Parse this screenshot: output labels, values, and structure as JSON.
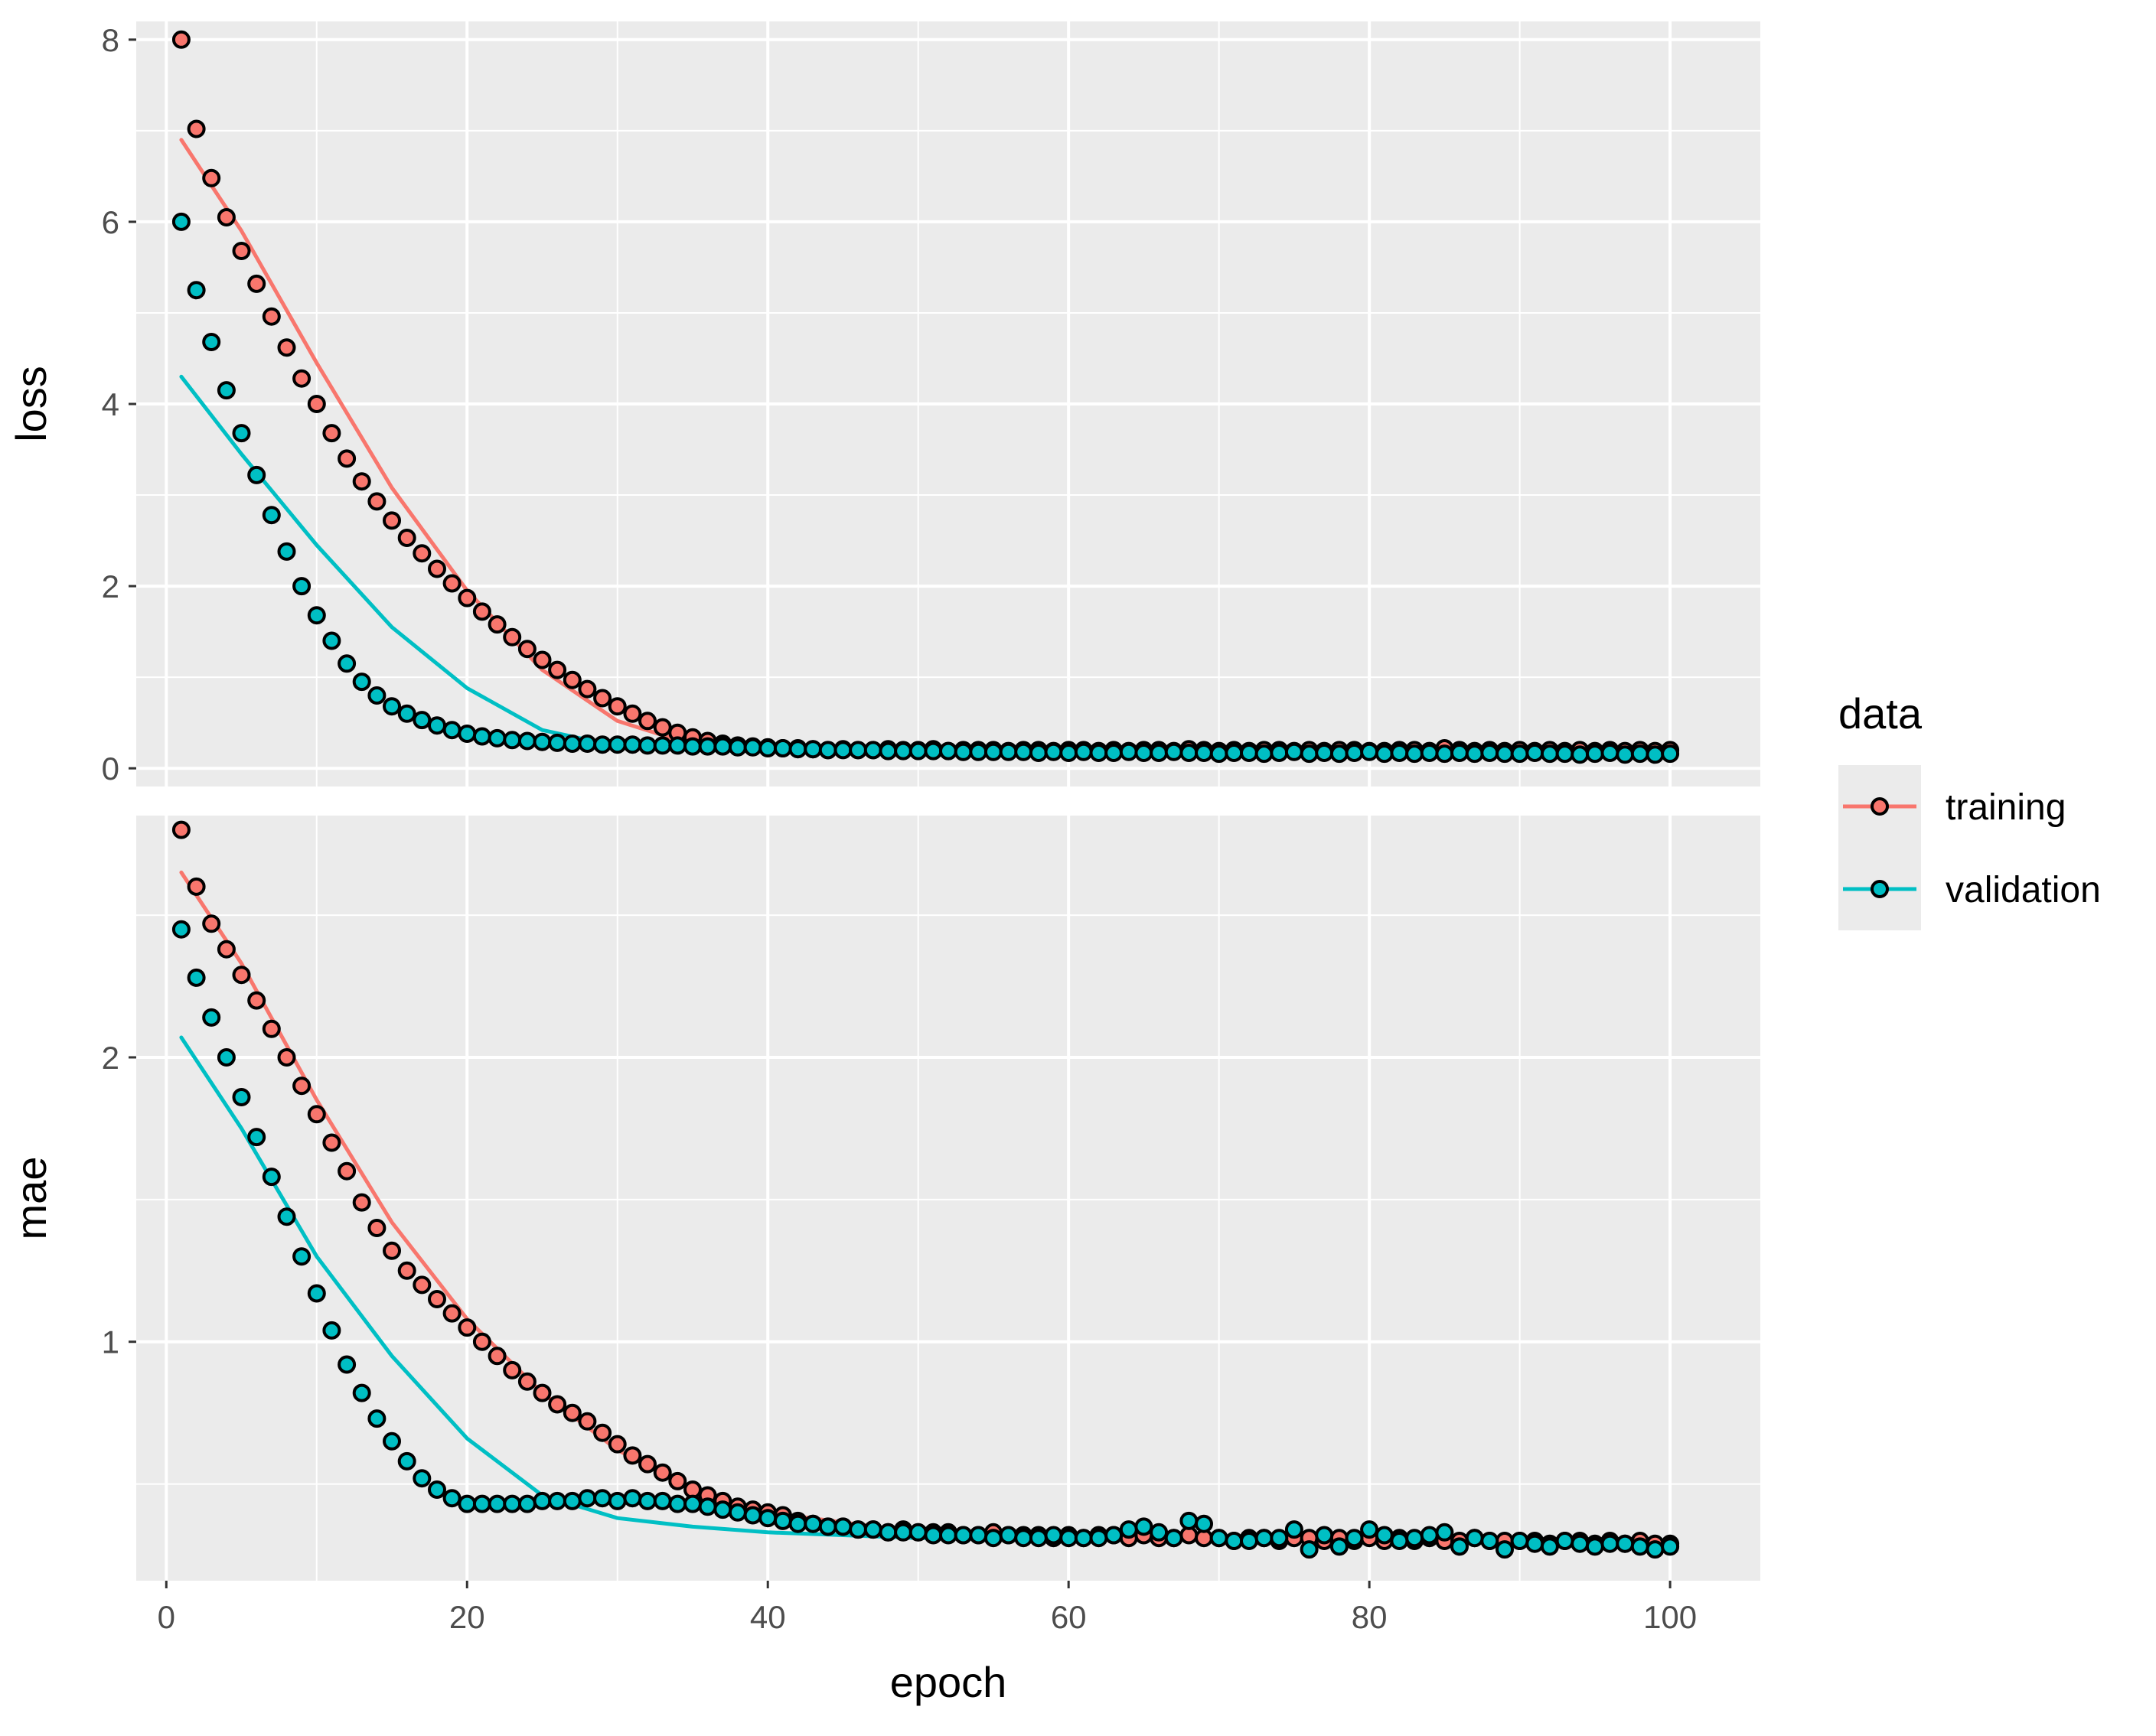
{
  "chart_data": {
    "type": "line",
    "description_style": "ggplot2 faceted plot of training history: points are per-epoch values, lines are smoothed fits",
    "x": {
      "label": "epoch",
      "range": [
        -2,
        106
      ],
      "ticks": [
        0,
        20,
        40,
        60,
        80,
        100
      ],
      "tick_labels": [
        "0",
        "20",
        "40",
        "60",
        "80",
        "100"
      ]
    },
    "legend": {
      "title": "data",
      "position": "right",
      "entries": [
        {
          "key": "training",
          "label": "training",
          "color": "#F8766D"
        },
        {
          "key": "validation",
          "label": "validation",
          "color": "#00BFC4"
        }
      ]
    },
    "point_outline_color": "#000000",
    "panel_background": "#EBEBEB",
    "gridline_color": "#FFFFFF",
    "panels": [
      {
        "key": "loss",
        "label": "loss",
        "ylim": [
          -0.2,
          8.2
        ],
        "yticks": [
          0,
          2,
          4,
          6,
          8
        ],
        "ytick_labels": [
          "0",
          "2",
          "4",
          "6",
          "8"
        ],
        "series": [
          {
            "name": "training",
            "values": [
              8.0,
              7.02,
              6.48,
              6.05,
              5.68,
              5.32,
              4.96,
              4.62,
              4.28,
              4.0,
              3.68,
              3.4,
              3.15,
              2.93,
              2.72,
              2.53,
              2.36,
              2.19,
              2.03,
              1.87,
              1.72,
              1.58,
              1.44,
              1.31,
              1.19,
              1.08,
              0.97,
              0.87,
              0.77,
              0.68,
              0.6,
              0.52,
              0.45,
              0.39,
              0.34,
              0.3,
              0.27,
              0.25,
              0.24,
              0.23,
              0.22,
              0.22,
              0.21,
              0.2,
              0.21,
              0.2,
              0.2,
              0.21,
              0.2,
              0.2,
              0.21,
              0.19,
              0.2,
              0.2,
              0.2,
              0.19,
              0.2,
              0.2,
              0.19,
              0.2,
              0.2,
              0.19,
              0.2,
              0.19,
              0.2,
              0.2,
              0.19,
              0.21,
              0.2,
              0.19,
              0.2,
              0.19,
              0.2,
              0.2,
              0.19,
              0.2,
              0.19,
              0.2,
              0.2,
              0.19,
              0.19,
              0.2,
              0.2,
              0.19,
              0.22,
              0.2,
              0.19,
              0.2,
              0.19,
              0.2,
              0.19,
              0.2,
              0.19,
              0.2,
              0.19,
              0.2,
              0.19,
              0.2,
              0.19,
              0.2
            ]
          },
          {
            "name": "validation",
            "values": [
              6.0,
              5.25,
              4.68,
              4.15,
              3.68,
              3.22,
              2.78,
              2.38,
              2.0,
              1.68,
              1.4,
              1.15,
              0.95,
              0.8,
              0.68,
              0.6,
              0.53,
              0.47,
              0.42,
              0.38,
              0.35,
              0.33,
              0.31,
              0.3,
              0.29,
              0.28,
              0.27,
              0.27,
              0.26,
              0.26,
              0.26,
              0.25,
              0.25,
              0.25,
              0.24,
              0.24,
              0.24,
              0.23,
              0.23,
              0.22,
              0.22,
              0.21,
              0.21,
              0.2,
              0.2,
              0.2,
              0.2,
              0.19,
              0.19,
              0.19,
              0.19,
              0.19,
              0.18,
              0.18,
              0.18,
              0.18,
              0.18,
              0.17,
              0.18,
              0.17,
              0.18,
              0.17,
              0.17,
              0.18,
              0.17,
              0.17,
              0.18,
              0.17,
              0.17,
              0.16,
              0.17,
              0.17,
              0.16,
              0.17,
              0.18,
              0.16,
              0.17,
              0.16,
              0.17,
              0.18,
              0.16,
              0.17,
              0.16,
              0.17,
              0.16,
              0.17,
              0.16,
              0.17,
              0.16,
              0.16,
              0.17,
              0.16,
              0.16,
              0.15,
              0.16,
              0.17,
              0.15,
              0.16,
              0.15,
              0.16
            ]
          }
        ],
        "smooth": [
          {
            "name": "training",
            "x": [
              1,
              5,
              10,
              15,
              20,
              25,
              30,
              35,
              40,
              50,
              60,
              70,
              80,
              90,
              100
            ],
            "y": [
              6.9,
              5.9,
              4.45,
              3.08,
              1.95,
              1.08,
              0.52,
              0.26,
              0.2,
              0.2,
              0.2,
              0.2,
              0.2,
              0.2,
              0.2
            ]
          },
          {
            "name": "validation",
            "x": [
              1,
              5,
              10,
              15,
              20,
              25,
              30,
              35,
              40,
              50,
              60,
              70,
              80,
              90,
              100
            ],
            "y": [
              4.3,
              3.45,
              2.45,
              1.55,
              0.88,
              0.42,
              0.24,
              0.2,
              0.19,
              0.18,
              0.17,
              0.17,
              0.17,
              0.16,
              0.16
            ]
          }
        ]
      },
      {
        "key": "mae",
        "label": "mae",
        "ylim": [
          0.16,
          2.85
        ],
        "yticks": [
          1,
          2
        ],
        "ytick_labels": [
          "1",
          "2"
        ],
        "series": [
          {
            "name": "training",
            "values": [
              2.8,
              2.6,
              2.47,
              2.38,
              2.29,
              2.2,
              2.1,
              2.0,
              1.9,
              1.8,
              1.7,
              1.6,
              1.49,
              1.4,
              1.32,
              1.25,
              1.2,
              1.15,
              1.1,
              1.05,
              1.0,
              0.95,
              0.9,
              0.86,
              0.82,
              0.78,
              0.75,
              0.72,
              0.68,
              0.64,
              0.6,
              0.57,
              0.54,
              0.51,
              0.48,
              0.46,
              0.44,
              0.42,
              0.41,
              0.4,
              0.39,
              0.37,
              0.36,
              0.35,
              0.35,
              0.34,
              0.34,
              0.33,
              0.34,
              0.33,
              0.33,
              0.33,
              0.32,
              0.32,
              0.33,
              0.32,
              0.32,
              0.32,
              0.31,
              0.32,
              0.31,
              0.32,
              0.32,
              0.31,
              0.32,
              0.31,
              0.31,
              0.32,
              0.31,
              0.31,
              0.3,
              0.31,
              0.31,
              0.3,
              0.31,
              0.31,
              0.3,
              0.31,
              0.3,
              0.31,
              0.3,
              0.31,
              0.3,
              0.31,
              0.3,
              0.3,
              0.31,
              0.3,
              0.3,
              0.3,
              0.3,
              0.29,
              0.3,
              0.3,
              0.29,
              0.3,
              0.29,
              0.3,
              0.29,
              0.29
            ]
          },
          {
            "name": "validation",
            "values": [
              2.45,
              2.28,
              2.14,
              2.0,
              1.86,
              1.72,
              1.58,
              1.44,
              1.3,
              1.17,
              1.04,
              0.92,
              0.82,
              0.73,
              0.65,
              0.58,
              0.52,
              0.48,
              0.45,
              0.43,
              0.43,
              0.43,
              0.43,
              0.43,
              0.44,
              0.44,
              0.44,
              0.45,
              0.45,
              0.44,
              0.45,
              0.44,
              0.44,
              0.43,
              0.43,
              0.42,
              0.41,
              0.4,
              0.39,
              0.38,
              0.37,
              0.36,
              0.36,
              0.35,
              0.35,
              0.34,
              0.34,
              0.33,
              0.33,
              0.33,
              0.32,
              0.32,
              0.32,
              0.32,
              0.31,
              0.32,
              0.31,
              0.31,
              0.32,
              0.31,
              0.31,
              0.31,
              0.32,
              0.34,
              0.35,
              0.33,
              0.31,
              0.37,
              0.36,
              0.31,
              0.3,
              0.3,
              0.31,
              0.31,
              0.34,
              0.27,
              0.32,
              0.28,
              0.31,
              0.34,
              0.32,
              0.3,
              0.31,
              0.32,
              0.33,
              0.28,
              0.31,
              0.3,
              0.27,
              0.3,
              0.29,
              0.28,
              0.3,
              0.29,
              0.28,
              0.29,
              0.29,
              0.28,
              0.27,
              0.28
            ]
          }
        ],
        "smooth": [
          {
            "name": "training",
            "x": [
              1,
              5,
              10,
              15,
              20,
              25,
              30,
              35,
              40,
              50,
              60,
              70,
              80,
              90,
              100
            ],
            "y": [
              2.65,
              2.33,
              1.85,
              1.42,
              1.08,
              0.82,
              0.62,
              0.48,
              0.4,
              0.33,
              0.31,
              0.31,
              0.31,
              0.3,
              0.29
            ]
          },
          {
            "name": "validation",
            "x": [
              1,
              5,
              10,
              15,
              20,
              25,
              30,
              35,
              40,
              50,
              60,
              70,
              80,
              90,
              100
            ],
            "y": [
              2.07,
              1.75,
              1.3,
              0.95,
              0.66,
              0.46,
              0.38,
              0.35,
              0.33,
              0.31,
              0.31,
              0.31,
              0.3,
              0.3,
              0.29
            ]
          }
        ]
      }
    ]
  }
}
